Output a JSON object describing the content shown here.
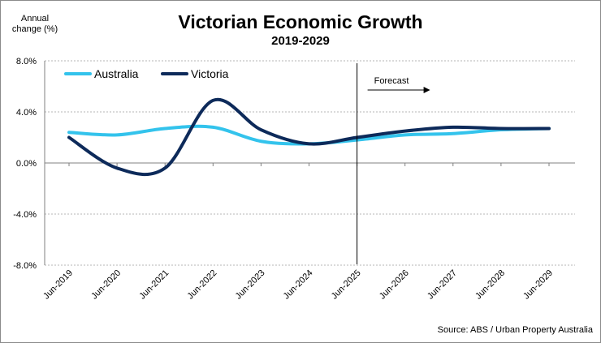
{
  "chart_data": {
    "type": "line",
    "title": "Victorian Economic Growth",
    "subtitle": "2019-2029",
    "ylabel_line1": "Annual",
    "ylabel_line2": "change (%)",
    "xlabel": "",
    "source": "Source: ABS / Urban Property Australia",
    "forecast_label": "Forecast",
    "forecast_divider_x": "Jun-2025",
    "categories": [
      "Jun-2019",
      "Jun-2020",
      "Jun-2021",
      "Jun-2022",
      "Jun-2023",
      "Jun-2024",
      "Jun-2025",
      "Jun-2026",
      "Jun-2027",
      "Jun-2028",
      "Jun-2029"
    ],
    "ylim": [
      -8,
      8
    ],
    "yticks": [
      8,
      4,
      0,
      -4,
      -8
    ],
    "ytick_labels": [
      "8.0%",
      "4.0%",
      "0.0%",
      "-4.0%",
      "-8.0%"
    ],
    "grid": "horizontal-dashed",
    "legend_position": "top-left",
    "series": [
      {
        "name": "Australia",
        "color": "#33c3ec",
        "values": [
          2.4,
          2.2,
          2.7,
          2.8,
          1.7,
          1.5,
          1.8,
          2.2,
          2.3,
          2.6,
          2.7
        ]
      },
      {
        "name": "Victoria",
        "color": "#0d2a5a",
        "values": [
          2.0,
          -0.4,
          -0.4,
          4.9,
          2.6,
          1.5,
          2.0,
          2.5,
          2.8,
          2.7,
          2.7
        ]
      }
    ]
  }
}
